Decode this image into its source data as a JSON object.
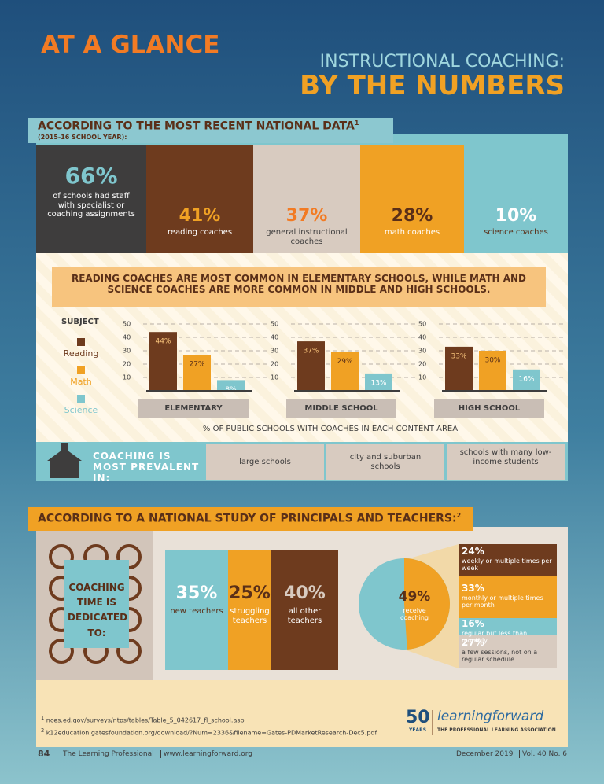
{
  "header": {
    "label": "AT A GLANCE",
    "title_line1": "INSTRUCTIONAL COACHING:",
    "title_line2": "BY THE NUMBERS"
  },
  "section1": {
    "heading": "ACCORDING TO THE MOST RECENT NATIONAL DATA",
    "footnote_mark": "1",
    "subheading": "(2015-16 SCHOOL YEAR):",
    "stats": [
      {
        "value": "66%",
        "label": "of schools had staff with specialist or coaching assignments"
      },
      {
        "value": "41%",
        "label": "reading coaches"
      },
      {
        "value": "37%",
        "label": "general instructional coaches"
      },
      {
        "value": "28%",
        "label": "math coaches"
      },
      {
        "value": "10%",
        "label": "science coaches"
      }
    ],
    "banner": "READING COACHES ARE MOST COMMON IN ELEMENTARY SCHOOLS, WHILE MATH AND SCIENCE COACHES ARE MORE COMMON IN MIDDLE AND HIGH SCHOOLS.",
    "legend": {
      "title": "SUBJECT",
      "items": [
        {
          "name": "Reading",
          "color": "#6e3b1e"
        },
        {
          "name": "Math",
          "color": "#f0a124"
        },
        {
          "name": "Science",
          "color": "#7fc6cd"
        }
      ]
    },
    "axis_note": "% OF PUBLIC SCHOOLS WITH COACHES IN EACH CONTENT AREA",
    "prevalent": {
      "title": "COACHING IS MOST PREVALENT IN:",
      "items": [
        "large schools",
        "city and suburban schools",
        "schools with many low-income students"
      ]
    }
  },
  "chart_data": [
    {
      "type": "bar",
      "title": "ELEMENTARY",
      "values": [
        44,
        27,
        8
      ],
      "value_labels": [
        "44%",
        "27%",
        "8%"
      ],
      "ylim": [
        0,
        50
      ],
      "yticks": [
        10,
        20,
        30,
        40,
        50
      ]
    },
    {
      "type": "bar",
      "title": "MIDDLE SCHOOL",
      "values": [
        37,
        29,
        13
      ],
      "value_labels": [
        "37%",
        "29%",
        "13%"
      ],
      "ylim": [
        0,
        50
      ],
      "yticks": [
        10,
        20,
        30,
        40,
        50
      ]
    },
    {
      "type": "bar",
      "title": "HIGH SCHOOL",
      "values": [
        33,
        30,
        16
      ],
      "value_labels": [
        "33%",
        "30%",
        "16%"
      ],
      "ylim": [
        0,
        50
      ],
      "yticks": [
        10,
        20,
        30,
        40,
        50
      ]
    },
    {
      "type": "pie",
      "values": [
        49
      ],
      "value_labels": [
        "49%"
      ],
      "label": "receive coaching",
      "color": "#f0a124"
    }
  ],
  "section2": {
    "heading": "ACCORDING TO A NATIONAL STUDY OF PRINCIPALS AND TEACHERS:",
    "footnote_mark": "2",
    "time_title": "COACHING TIME IS DEDICATED TO:",
    "time": [
      {
        "value": "35%",
        "label": "new teachers"
      },
      {
        "value": "25%",
        "label": "struggling teachers"
      },
      {
        "value": "40%",
        "label": "all other teachers"
      }
    ],
    "frequency": [
      {
        "value": "24%",
        "label": "weekly or multiple times per week"
      },
      {
        "value": "33%",
        "label": "monthly or multiple times per month"
      },
      {
        "value": "16%",
        "label": "regular but less than monthly"
      },
      {
        "value": "27%",
        "label": "a few sessions, not on a regular schedule"
      }
    ]
  },
  "footnotes": [
    {
      "mark": "1",
      "text": "nces.ed.gov/surveys/ntps/tables/Table_5_042617_fl_school.asp"
    },
    {
      "mark": "2",
      "text": "k12education.gatesfoundation.org/download/?Num=2336&filename=Gates-PDMarketResearch-Dec5.pdf"
    }
  ],
  "logo": {
    "years_number": "50",
    "years": "YEARS",
    "name": "learningforward",
    "tagline": "THE PROFESSIONAL LEARNING ASSOCIATION"
  },
  "footer": {
    "page": "84",
    "publication": "The Learning Professional",
    "url": "www.learningforward.org",
    "date": "December 2019",
    "issue": "Vol. 40 No. 6"
  }
}
